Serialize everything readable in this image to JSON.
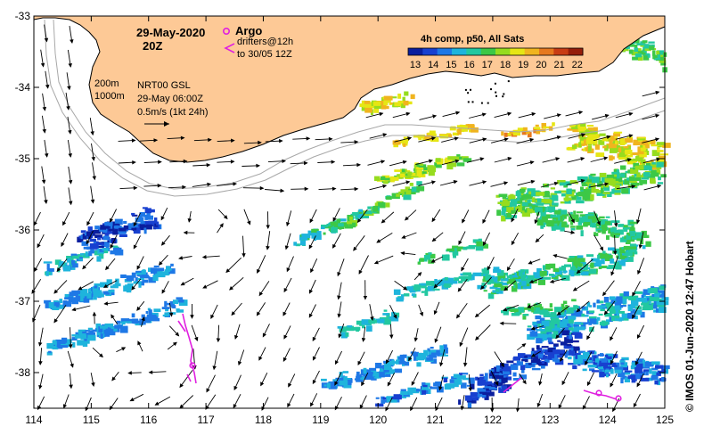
{
  "header": {
    "date": "29-May-2020",
    "hour": "20Z",
    "composite": "4h comp, p50, All Sats"
  },
  "legend": {
    "argo_label": "Argo",
    "drifters_line1": "drifters@12h",
    "drifters_line2": "to 30/05 12Z",
    "argo_color": "#e020e0"
  },
  "contours": {
    "c200": "200m",
    "c1000": "1000m"
  },
  "currents": {
    "source": "NRT00 GSL",
    "time": "29-May 06:00Z",
    "scale": "0.5m/s (1kt 24h)"
  },
  "credit": "©  IMOS 01-Jun-2020 12:47 Hobart",
  "axes": {
    "x_ticks": [
      "114",
      "115",
      "116",
      "117",
      "118",
      "119",
      "120",
      "121",
      "122",
      "123",
      "124",
      "125"
    ],
    "y_ticks": [
      "-33",
      "-34",
      "-35",
      "-36",
      "-37",
      "-38"
    ],
    "lon_range": [
      114,
      125
    ],
    "lat_range": [
      -38.5,
      -33
    ]
  },
  "colorbar": {
    "labels": [
      "13",
      "14",
      "15",
      "16",
      "17",
      "18",
      "19",
      "20",
      "21",
      "22"
    ],
    "colors": [
      "#0a1e9e",
      "#1840d0",
      "#1e78e6",
      "#1eb4dc",
      "#22c8a0",
      "#3cc846",
      "#96dc1e",
      "#e6e614",
      "#f0b41e",
      "#e6781e",
      "#c83c14",
      "#961e0a"
    ]
  },
  "colors": {
    "land": "#fdc996",
    "coast": "#000000",
    "contour": "#a8a8a8",
    "ocean": "#ffffff"
  }
}
